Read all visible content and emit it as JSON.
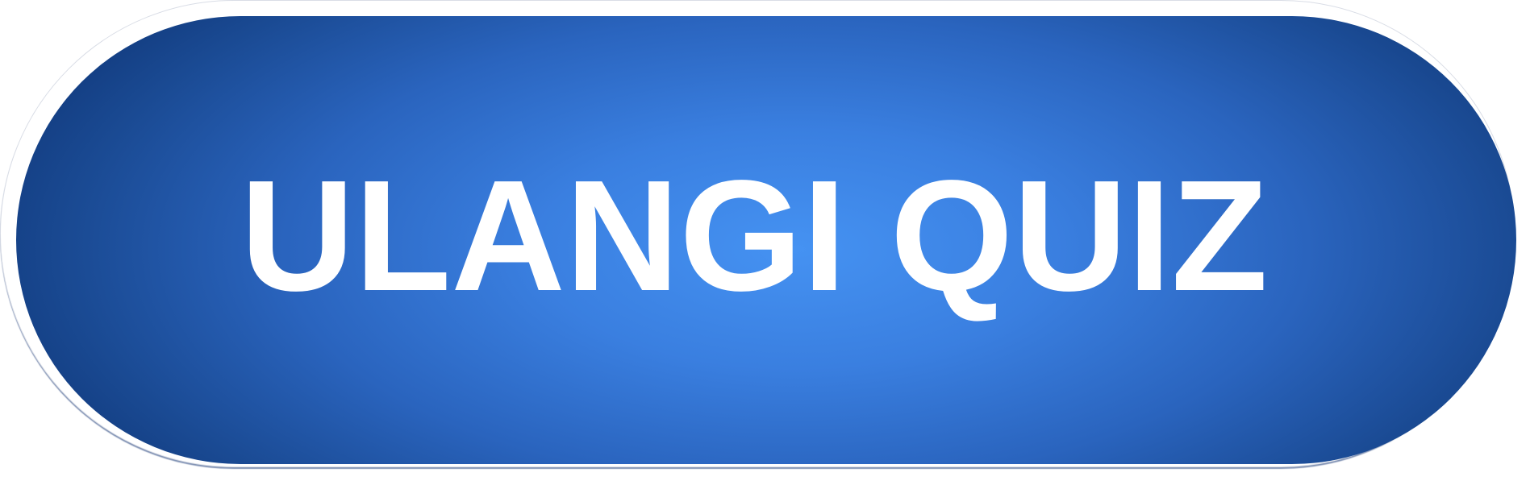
{
  "banner": {
    "title": "ULANGI QUIZ"
  },
  "colors": {
    "gradient_center": "#4592f2",
    "gradient_edge": "#0b2f6e",
    "text": "#ffffff",
    "border": "#ffffff"
  }
}
